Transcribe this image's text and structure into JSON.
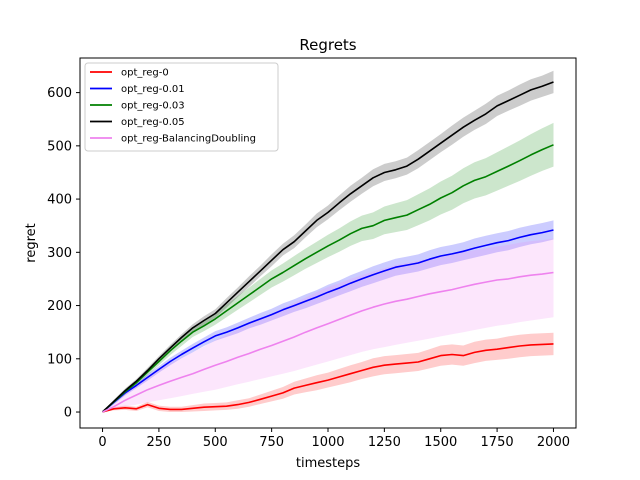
{
  "chart_data": {
    "type": "line",
    "title": "Regrets",
    "xlabel": "timesteps",
    "ylabel": "regret",
    "xlim": [
      -100,
      2100
    ],
    "ylim": [
      -30,
      665
    ],
    "xticks": [
      0,
      250,
      500,
      750,
      1000,
      1250,
      1500,
      1750,
      2000
    ],
    "yticks": [
      0,
      100,
      200,
      300,
      400,
      500,
      600
    ],
    "grid": false,
    "legend_position": "upper-left",
    "x": [
      0,
      50,
      100,
      150,
      200,
      250,
      300,
      350,
      400,
      450,
      500,
      550,
      600,
      650,
      700,
      750,
      800,
      850,
      900,
      950,
      1000,
      1050,
      1100,
      1150,
      1200,
      1250,
      1300,
      1350,
      1400,
      1450,
      1500,
      1550,
      1600,
      1650,
      1700,
      1750,
      1800,
      1850,
      1900,
      1950,
      2000
    ],
    "series": [
      {
        "name": "opt_reg-0",
        "color": "#ff0000",
        "values": [
          0,
          6,
          8,
          6,
          14,
          7,
          5,
          5,
          7,
          9,
          10,
          11,
          14,
          18,
          24,
          30,
          36,
          45,
          50,
          55,
          60,
          66,
          72,
          78,
          84,
          88,
          90,
          92,
          94,
          100,
          106,
          108,
          106,
          112,
          116,
          118,
          121,
          124,
          126,
          127,
          128
        ],
        "lower": [
          0,
          3,
          4,
          2,
          9,
          2,
          0,
          0,
          1,
          2,
          3,
          4,
          6,
          10,
          15,
          20,
          25,
          33,
          37,
          41,
          46,
          51,
          56,
          62,
          67,
          71,
          73,
          75,
          77,
          82,
          87,
          89,
          87,
          92,
          96,
          98,
          100,
          103,
          105,
          106,
          107
        ],
        "upper": [
          0,
          9,
          12,
          10,
          19,
          12,
          10,
          10,
          13,
          16,
          17,
          18,
          22,
          26,
          33,
          40,
          47,
          57,
          63,
          69,
          74,
          81,
          88,
          94,
          101,
          105,
          107,
          109,
          111,
          118,
          125,
          127,
          125,
          132,
          136,
          138,
          142,
          145,
          147,
          148,
          149
        ]
      },
      {
        "name": "opt_reg-0.01",
        "color": "#0000ff",
        "values": [
          0,
          18,
          36,
          50,
          65,
          80,
          95,
          108,
          120,
          132,
          143,
          150,
          158,
          167,
          175,
          183,
          192,
          200,
          208,
          216,
          225,
          233,
          242,
          250,
          258,
          265,
          272,
          276,
          280,
          287,
          293,
          297,
          302,
          308,
          313,
          318,
          322,
          328,
          333,
          337,
          342
        ],
        "lower": [
          0,
          14,
          31,
          45,
          59,
          74,
          88,
          101,
          112,
          124,
          134,
          141,
          148,
          157,
          164,
          172,
          180,
          188,
          195,
          203,
          211,
          219,
          227,
          235,
          242,
          249,
          256,
          260,
          264,
          270,
          276,
          280,
          285,
          290,
          295,
          300,
          304,
          310,
          315,
          319,
          324
        ],
        "upper": [
          0,
          22,
          41,
          55,
          71,
          86,
          102,
          115,
          128,
          140,
          152,
          159,
          168,
          177,
          186,
          194,
          204,
          212,
          221,
          229,
          239,
          247,
          257,
          265,
          274,
          281,
          288,
          292,
          296,
          304,
          310,
          314,
          319,
          326,
          331,
          336,
          340,
          346,
          351,
          355,
          360
        ]
      },
      {
        "name": "opt_reg-0.03",
        "color": "#008000",
        "values": [
          0,
          19,
          38,
          55,
          75,
          95,
          115,
          133,
          150,
          162,
          175,
          190,
          205,
          220,
          235,
          250,
          262,
          275,
          288,
          300,
          312,
          323,
          335,
          345,
          350,
          360,
          365,
          370,
          380,
          390,
          402,
          412,
          425,
          435,
          442,
          452,
          462,
          472,
          483,
          493,
          502
        ],
        "lower": [
          0,
          16,
          33,
          50,
          69,
          88,
          107,
          124,
          141,
          152,
          164,
          178,
          192,
          206,
          220,
          234,
          245,
          257,
          269,
          280,
          291,
          301,
          312,
          321,
          325,
          334,
          338,
          342,
          351,
          360,
          371,
          380,
          392,
          401,
          407,
          416,
          425,
          434,
          444,
          453,
          461
        ],
        "upper": [
          0,
          22,
          43,
          60,
          81,
          102,
          123,
          142,
          159,
          172,
          186,
          202,
          218,
          234,
          250,
          266,
          279,
          293,
          307,
          320,
          333,
          345,
          358,
          369,
          375,
          386,
          392,
          398,
          409,
          420,
          433,
          444,
          458,
          469,
          477,
          488,
          499,
          510,
          522,
          533,
          543
        ]
      },
      {
        "name": "opt_reg-0.05",
        "color": "#000000",
        "values": [
          0,
          20,
          40,
          58,
          78,
          100,
          120,
          140,
          158,
          172,
          185,
          205,
          225,
          245,
          265,
          285,
          305,
          320,
          340,
          360,
          375,
          393,
          410,
          425,
          440,
          450,
          455,
          462,
          475,
          490,
          505,
          520,
          535,
          548,
          560,
          575,
          585,
          595,
          605,
          612,
          620
        ],
        "lower": [
          0,
          17,
          36,
          54,
          73,
          95,
          114,
          134,
          151,
          164,
          177,
          196,
          216,
          235,
          255,
          274,
          294,
          308,
          328,
          347,
          362,
          379,
          395,
          410,
          424,
          434,
          439,
          446,
          458,
          473,
          488,
          502,
          517,
          530,
          541,
          556,
          566,
          575,
          585,
          592,
          599
        ],
        "upper": [
          0,
          23,
          44,
          62,
          83,
          105,
          126,
          146,
          165,
          180,
          193,
          214,
          234,
          255,
          275,
          296,
          316,
          332,
          352,
          373,
          388,
          407,
          425,
          440,
          456,
          466,
          471,
          478,
          492,
          507,
          522,
          538,
          553,
          566,
          579,
          594,
          604,
          615,
          625,
          632,
          641
        ]
      },
      {
        "name": "opt_reg-BalancingDoubling",
        "color": "#ee82ee",
        "values": [
          0,
          10,
          22,
          32,
          42,
          50,
          58,
          65,
          72,
          80,
          88,
          95,
          103,
          110,
          118,
          125,
          133,
          141,
          150,
          158,
          166,
          174,
          182,
          190,
          197,
          203,
          208,
          212,
          217,
          222,
          226,
          230,
          235,
          240,
          244,
          248,
          250,
          254,
          257,
          259,
          262
        ],
        "lower": [
          0,
          5,
          10,
          14,
          18,
          22,
          26,
          30,
          34,
          38,
          42,
          47,
          52,
          57,
          62,
          67,
          72,
          77,
          83,
          89,
          95,
          101,
          107,
          113,
          118,
          122,
          126,
          130,
          134,
          138,
          142,
          146,
          150,
          154,
          158,
          162,
          165,
          169,
          172,
          175,
          178
        ],
        "upper": [
          0,
          16,
          35,
          52,
          68,
          80,
          92,
          102,
          112,
          123,
          135,
          145,
          155,
          165,
          175,
          185,
          195,
          205,
          215,
          225,
          235,
          242,
          250,
          257,
          264,
          270,
          276,
          280,
          284,
          288,
          292,
          296,
          300,
          304,
          308,
          311,
          314,
          318,
          321,
          323,
          326
        ]
      }
    ]
  }
}
